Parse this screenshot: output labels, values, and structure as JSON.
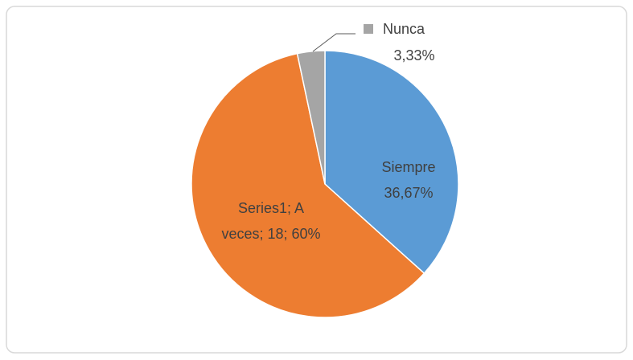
{
  "chart_data": {
    "type": "pie",
    "series_name": "Series1",
    "categories": [
      "Siempre",
      "A veces",
      "Nunca"
    ],
    "values": [
      36.67,
      60,
      3.33
    ],
    "value_labels": [
      "36,67%",
      "60%",
      "3,33%"
    ],
    "counts": [
      null,
      18,
      null
    ],
    "label_separator": "; ",
    "colors": [
      "#5b9bd5",
      "#ed7d31",
      "#a5a5a5"
    ]
  }
}
